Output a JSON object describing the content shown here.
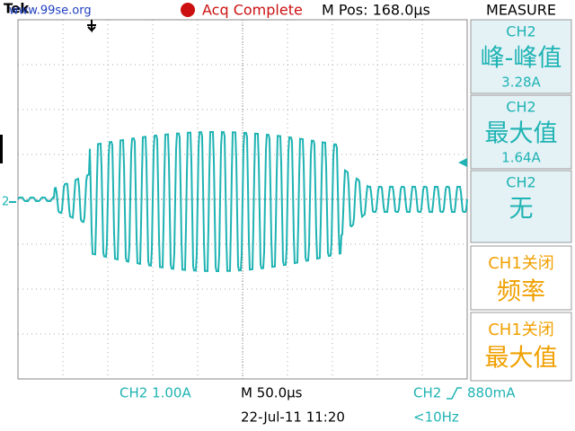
{
  "header": {
    "brand": "Tek",
    "watermark": "www.99se.org",
    "status": "Acq Complete",
    "mpos": "M Pos: 168.0μs",
    "menu_title": "MEASURE"
  },
  "channel_marker": "2",
  "measurements": [
    {
      "channel": "CH2",
      "label": "峰-峰值",
      "value": "3.28A"
    },
    {
      "channel": "CH2",
      "label": "最大值",
      "value": "1.64A"
    },
    {
      "channel": "CH2",
      "label": "无"
    },
    {
      "channel": "CH1关闭",
      "label": "频率"
    },
    {
      "channel": "CH1关闭",
      "label": "最大值"
    }
  ],
  "footer": {
    "ch_scale": "CH2  1.00A",
    "timebase": "M 50.0μs",
    "trigger_source": "CH2",
    "trigger_level": "880mA",
    "date": "22-Jul-11 11:20",
    "freq": "<10Hz"
  }
}
